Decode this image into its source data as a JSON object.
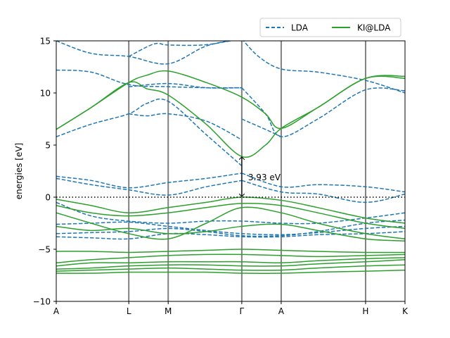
{
  "chart_data": {
    "type": "line",
    "title": "",
    "xlabel": "",
    "ylabel": "energies [eV]",
    "ylim": [
      -10,
      15
    ],
    "yticks": [
      -10,
      -5,
      0,
      5,
      10,
      15
    ],
    "ytick_labels": [
      "−10",
      "−5",
      "0",
      "5",
      "10",
      "15"
    ],
    "kpoints": [
      {
        "label": "A",
        "x": 0.0
      },
      {
        "label": "L",
        "x": 0.208
      },
      {
        "label": "M",
        "x": 0.321
      },
      {
        "label": "Γ",
        "x": 0.532
      },
      {
        "label": "A",
        "x": 0.645
      },
      {
        "label": "H",
        "x": 0.887
      },
      {
        "label": "K",
        "x": 1.0
      }
    ],
    "fermi_level": 0,
    "gap_annotation": {
      "text": "3.93 eV",
      "x": 0.532,
      "y_from": 0,
      "y_to": 3.93
    },
    "legend": {
      "placement": "top-right, above plot",
      "entries": [
        "LDA",
        "KI@LDA"
      ]
    },
    "colors": {
      "LDA": "#1f77b4",
      "KI@LDA": "#2ca02c",
      "kpath_lines": "#808080"
    },
    "series": [
      {
        "name": "LDA",
        "style": "dashed",
        "bands": [
          {
            "x": [
              0,
              0.1,
              0.208,
              0.321,
              0.43,
              0.532
            ],
            "y": [
              15,
              13.8,
              13.5,
              12.8,
              14.5,
              15.2
            ]
          },
          {
            "x": [
              0.208,
              0.28,
              0.321,
              0.42,
              0.5,
              0.532
            ],
            "y": [
              13.5,
              14.7,
              14.6,
              14.6,
              15,
              15.2
            ]
          },
          {
            "x": [
              0,
              0.1,
              0.208,
              0.321,
              0.43,
              0.532
            ],
            "y": [
              12.2,
              12.0,
              10.8,
              10.6,
              10.5,
              10.5
            ]
          },
          {
            "x": [
              0.208,
              0.321,
              0.43,
              0.532
            ],
            "y": [
              10.6,
              10.9,
              10.5,
              10.5
            ]
          },
          {
            "x": [
              0,
              0.1,
              0.208,
              0.26,
              0.321,
              0.43,
              0.532
            ],
            "y": [
              5.8,
              7.0,
              8.0,
              9.0,
              9.2,
              6.0,
              3.0
            ]
          },
          {
            "x": [
              0.208,
              0.26,
              0.321,
              0.43,
              0.532
            ],
            "y": [
              8.0,
              7.8,
              8.0,
              7.3,
              5.5
            ]
          },
          {
            "x": [
              0.532,
              0.58,
              0.645,
              0.75,
              0.887,
              1.0
            ],
            "y": [
              15.2,
              13.5,
              12.3,
              12.0,
              11.2,
              10.0
            ]
          },
          {
            "x": [
              0.532,
              0.6,
              0.645,
              0.75,
              0.887,
              1.0
            ],
            "y": [
              10.5,
              8.0,
              5.8,
              7.5,
              10.3,
              10.2
            ]
          },
          {
            "x": [
              0.532,
              0.6,
              0.645
            ],
            "y": [
              7.5,
              6.5,
              5.8
            ]
          },
          {
            "x": [
              0,
              0.1,
              0.208,
              0.321,
              0.43,
              0.532
            ],
            "y": [
              2.0,
              1.6,
              0.9,
              1.4,
              1.8,
              2.3
            ]
          },
          {
            "x": [
              0,
              0.1,
              0.208,
              0.321,
              0.43,
              0.532
            ],
            "y": [
              1.8,
              1.2,
              0.7,
              0.2,
              1.0,
              1.6
            ]
          },
          {
            "x": [
              0.532,
              0.645,
              0.75,
              0.887,
              1.0
            ],
            "y": [
              2.3,
              1.0,
              1.2,
              1.0,
              0.5
            ]
          },
          {
            "x": [
              0.532,
              0.645,
              0.75,
              0.887,
              1.0
            ],
            "y": [
              1.6,
              0.5,
              0.3,
              -0.5,
              0.3
            ]
          },
          {
            "x": [
              0,
              0.1,
              0.208,
              0.321,
              0.43,
              0.532,
              0.645,
              0.75,
              0.887,
              1.0
            ],
            "y": [
              -0.5,
              -1.8,
              -2.3,
              -2.5,
              -2.3,
              -2.3,
              -2.5,
              -2.5,
              -2.0,
              -1.5
            ]
          },
          {
            "x": [
              0,
              0.1,
              0.208,
              0.321,
              0.43,
              0.532,
              0.645,
              0.75,
              0.887,
              1.0
            ],
            "y": [
              -2.6,
              -2.5,
              -2.4,
              -2.8,
              -3.2,
              -3.5,
              -3.6,
              -3.4,
              -3.0,
              -2.8
            ]
          },
          {
            "x": [
              0,
              0.1,
              0.208,
              0.321,
              0.43,
              0.532,
              0.645,
              0.75,
              0.887,
              1.0
            ],
            "y": [
              -3.5,
              -3.4,
              -3.3,
              -3.0,
              -3.3,
              -3.7,
              -3.7,
              -3.3,
              -2.5,
              -2.2
            ]
          },
          {
            "x": [
              0,
              0.1,
              0.208,
              0.321,
              0.43,
              0.532,
              0.645,
              0.75,
              0.887,
              1.0
            ],
            "y": [
              -3.8,
              -3.9,
              -4.0,
              -3.5,
              -3.6,
              -3.8,
              -3.8,
              -3.6,
              -3.5,
              -3.3
            ]
          }
        ]
      },
      {
        "name": "KI@LDA",
        "style": "solid",
        "bands": [
          {
            "x": [
              0,
              0.1,
              0.208,
              0.26,
              0.321,
              0.43,
              0.532,
              0.6,
              0.645,
              0.75,
              0.887,
              1.0
            ],
            "y": [
              6.5,
              8.6,
              11.0,
              11.7,
              12.1,
              11.0,
              9.6,
              8.0,
              6.6,
              8.6,
              11.4,
              11.6
            ]
          },
          {
            "x": [
              0,
              0.1,
              0.208,
              0.26,
              0.321,
              0.43,
              0.532,
              0.6,
              0.645,
              0.75,
              0.887,
              1.0
            ],
            "y": [
              6.5,
              8.6,
              11.0,
              10.4,
              9.8,
              7.0,
              3.9,
              5.0,
              6.6,
              8.6,
              11.4,
              11.4
            ]
          },
          {
            "x": [
              0,
              0.1,
              0.208,
              0.321,
              0.43,
              0.532,
              0.645,
              0.75,
              0.887,
              1.0
            ],
            "y": [
              -0.2,
              -0.8,
              -1.5,
              -1.0,
              -0.5,
              0.0,
              -0.3,
              -1.0,
              -2.0,
              -2.5
            ]
          },
          {
            "x": [
              0,
              0.1,
              0.208,
              0.321,
              0.43,
              0.532,
              0.645,
              0.75,
              0.887,
              1.0
            ],
            "y": [
              -0.8,
              -1.5,
              -1.8,
              -1.5,
              -1.0,
              -0.6,
              -0.8,
              -1.5,
              -2.5,
              -3.0
            ]
          },
          {
            "x": [
              0,
              0.1,
              0.208,
              0.321,
              0.43,
              0.532,
              0.645,
              0.75,
              0.887,
              1.0
            ],
            "y": [
              -1.5,
              -2.5,
              -3.5,
              -4.0,
              -2.5,
              -1.0,
              -1.5,
              -2.5,
              -3.5,
              -4.0
            ]
          },
          {
            "x": [
              0,
              0.1,
              0.208,
              0.321,
              0.43,
              0.532,
              0.645,
              0.75,
              0.887,
              1.0
            ],
            "y": [
              -2.8,
              -3.2,
              -3.0,
              -3.5,
              -3.3,
              -2.8,
              -2.6,
              -3.2,
              -4.0,
              -4.2
            ]
          },
          {
            "x": [
              0,
              0.1,
              0.208,
              0.321,
              0.43,
              0.532,
              0.645,
              0.75,
              0.887,
              1.0
            ],
            "y": [
              -5.2,
              -5.2,
              -5.3,
              -5.2,
              -5.1,
              -5.0,
              -5.1,
              -5.2,
              -5.3,
              -5.3
            ]
          },
          {
            "x": [
              0,
              0.1,
              0.208,
              0.321,
              0.43,
              0.532,
              0.645,
              0.75,
              0.887,
              1.0
            ],
            "y": [
              -6.3,
              -6.0,
              -5.8,
              -5.6,
              -5.5,
              -5.5,
              -5.6,
              -5.7,
              -5.6,
              -5.5
            ]
          },
          {
            "x": [
              0,
              0.1,
              0.208,
              0.321,
              0.43,
              0.532,
              0.645,
              0.75,
              0.887,
              1.0
            ],
            "y": [
              -6.6,
              -6.3,
              -6.3,
              -6.2,
              -6.2,
              -6.2,
              -6.3,
              -6.1,
              -5.9,
              -5.8
            ]
          },
          {
            "x": [
              0,
              0.1,
              0.208,
              0.321,
              0.43,
              0.532,
              0.645,
              0.75,
              0.887,
              1.0
            ],
            "y": [
              -6.9,
              -6.8,
              -6.6,
              -6.5,
              -6.5,
              -6.6,
              -6.6,
              -6.4,
              -6.2,
              -6.0
            ]
          },
          {
            "x": [
              0,
              0.1,
              0.208,
              0.321,
              0.43,
              0.532,
              0.645,
              0.75,
              0.887,
              1.0
            ],
            "y": [
              -7.1,
              -7.0,
              -6.9,
              -6.8,
              -6.9,
              -7.0,
              -7.0,
              -6.8,
              -6.6,
              -6.5
            ]
          },
          {
            "x": [
              0,
              0.1,
              0.208,
              0.321,
              0.43,
              0.532,
              0.645,
              0.75,
              0.887,
              1.0
            ],
            "y": [
              -7.3,
              -7.3,
              -7.2,
              -7.2,
              -7.2,
              -7.3,
              -7.3,
              -7.2,
              -7.1,
              -7.0
            ]
          }
        ]
      }
    ]
  }
}
